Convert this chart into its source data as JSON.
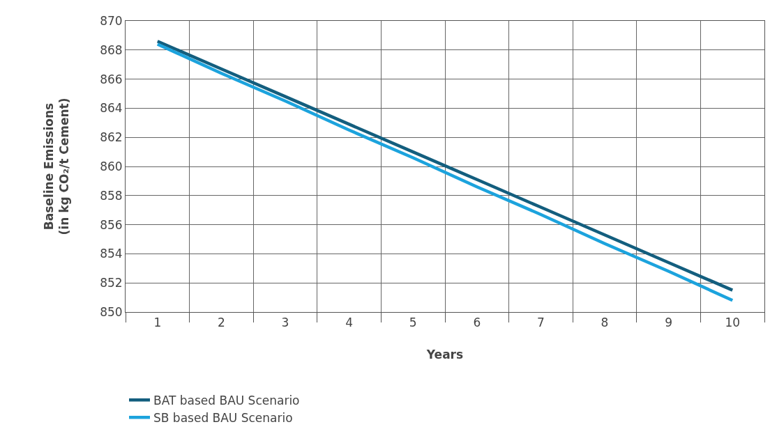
{
  "chart_data": {
    "type": "line",
    "xlabel": "Years",
    "ylabel": "Baseline Emissions\n(in kg CO₂/t Cement)",
    "categories": [
      "1",
      "2",
      "3",
      "4",
      "5",
      "6",
      "7",
      "8",
      "9",
      "10"
    ],
    "series": [
      {
        "name": "BAT based BAU Scenario",
        "color": "#135e7e",
        "values": [
          868.6,
          866.7,
          864.8,
          862.9,
          861.0,
          859.1,
          857.2,
          855.3,
          853.4,
          851.5
        ]
      },
      {
        "name": "SB based BAU Scenario",
        "color": "#1ca3dd",
        "values": [
          868.4,
          866.4,
          864.5,
          862.5,
          860.6,
          858.6,
          856.7,
          854.7,
          852.8,
          850.8
        ]
      }
    ],
    "ylim": [
      850,
      870
    ],
    "yticks": [
      850,
      852,
      854,
      856,
      858,
      860,
      862,
      864,
      866,
      868,
      870
    ],
    "grid": true,
    "legend": "bottom left",
    "marker": "none",
    "line_style": "solid"
  }
}
